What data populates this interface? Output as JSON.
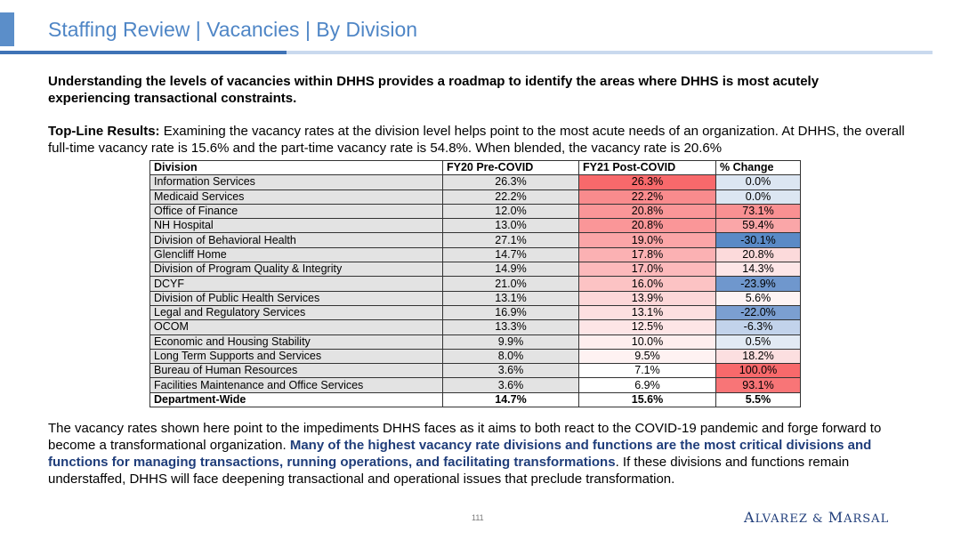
{
  "header": {
    "title": "Staffing Review | Vacancies | By Division"
  },
  "intro": "Understanding the levels of vacancies within DHHS provides a roadmap to identify the areas where DHHS is most acutely experiencing transactional constraints.",
  "topline": {
    "label": "Top-Line Results:",
    "text": " Examining the vacancy rates at the division level helps point to the most acute needs of an organization. At DHHS, the overall full-time vacancy rate is 15.6% and the part-time vacancy rate is 54.8%. When blended, the vacancy rate is 20.6%"
  },
  "table": {
    "headers": [
      "Division",
      "FY20 Pre-COVID",
      "FY21 Post-COVID",
      "% Change"
    ],
    "rows": [
      {
        "division": "Information Services",
        "pre": "26.3%",
        "post": "26.3%",
        "change": "0.0%",
        "post_color": "#f8696b",
        "change_color": "#dce6f2"
      },
      {
        "division": "Medicaid Services",
        "pre": "22.2%",
        "post": "22.2%",
        "change": "0.0%",
        "post_color": "#f98b8d",
        "change_color": "#dce6f2"
      },
      {
        "division": "Office of Finance",
        "pre": "12.0%",
        "post": "20.8%",
        "change": "73.1%",
        "post_color": "#fa9698",
        "change_color": "#f99092"
      },
      {
        "division": "NH Hospital",
        "pre": "13.0%",
        "post": "20.8%",
        "change": "59.4%",
        "post_color": "#fa9698",
        "change_color": "#faa6a8"
      },
      {
        "division": "Division of Behavioral Health",
        "pre": "27.1%",
        "post": "19.0%",
        "change": "-30.1%",
        "post_color": "#fba5a7",
        "change_color": "#5a8ac6"
      },
      {
        "division": "Glencliff Home",
        "pre": "14.7%",
        "post": "17.8%",
        "change": "20.8%",
        "post_color": "#fbb1b3",
        "change_color": "#fcdadb"
      },
      {
        "division": "Division of Program Quality & Integrity",
        "pre": "14.9%",
        "post": "17.0%",
        "change": "14.3%",
        "post_color": "#fcb9bb",
        "change_color": "#fde6e7"
      },
      {
        "division": "DCYF",
        "pre": "21.0%",
        "post": "16.0%",
        "change": "-23.9%",
        "post_color": "#fcc3c4",
        "change_color": "#6f97cd"
      },
      {
        "division": "Division of Public Health Services",
        "pre": "13.1%",
        "post": "13.9%",
        "change": "5.6%",
        "post_color": "#fdd7d8",
        "change_color": "#fdf3f3"
      },
      {
        "division": "Legal and Regulatory Services",
        "pre": "16.9%",
        "post": "13.1%",
        "change": "-22.0%",
        "post_color": "#fddfe0",
        "change_color": "#7b9fd1"
      },
      {
        "division": "OCOM",
        "pre": "13.3%",
        "post": "12.5%",
        "change": "-6.3%",
        "post_color": "#fde5e6",
        "change_color": "#c2d3eb"
      },
      {
        "division": "Economic and Housing Stability",
        "pre": "9.9%",
        "post": "10.0%",
        "change": "0.5%",
        "post_color": "#feeeee",
        "change_color": "#e2eaf4"
      },
      {
        "division": "Long Term Supports and Services",
        "pre": "8.0%",
        "post": "9.5%",
        "change": "18.2%",
        "post_color": "#fef2f2",
        "change_color": "#fcdfe0"
      },
      {
        "division": "Bureau of Human Resources",
        "pre": "3.6%",
        "post": "7.1%",
        "change": "100.0%",
        "post_color": "#ffffff",
        "change_color": "#f8696b"
      },
      {
        "division": "Facilities Maintenance and Office Services",
        "pre": "3.6%",
        "post": "6.9%",
        "change": "93.1%",
        "post_color": "#ffffff",
        "change_color": "#f87577"
      }
    ],
    "total": {
      "division": "Department-Wide",
      "pre": "14.7%",
      "post": "15.6%",
      "change": "5.5%"
    }
  },
  "closing": {
    "part1": "The vacancy rates shown here point to the impediments DHHS faces as it aims to both react to the COVID-19 pandemic and forge forward to become a transformational organization. ",
    "highlight": "Many of the highest vacancy rate divisions and functions are the most critical divisions and functions for managing transactions, running operations, and facilitating transformations",
    "part2": ". If these divisions and functions remain understaffed, DHHS will face deepening transactional and operational issues that preclude transformation."
  },
  "footer": {
    "page_number": "111",
    "logo": "Alvarez & Marsal"
  }
}
